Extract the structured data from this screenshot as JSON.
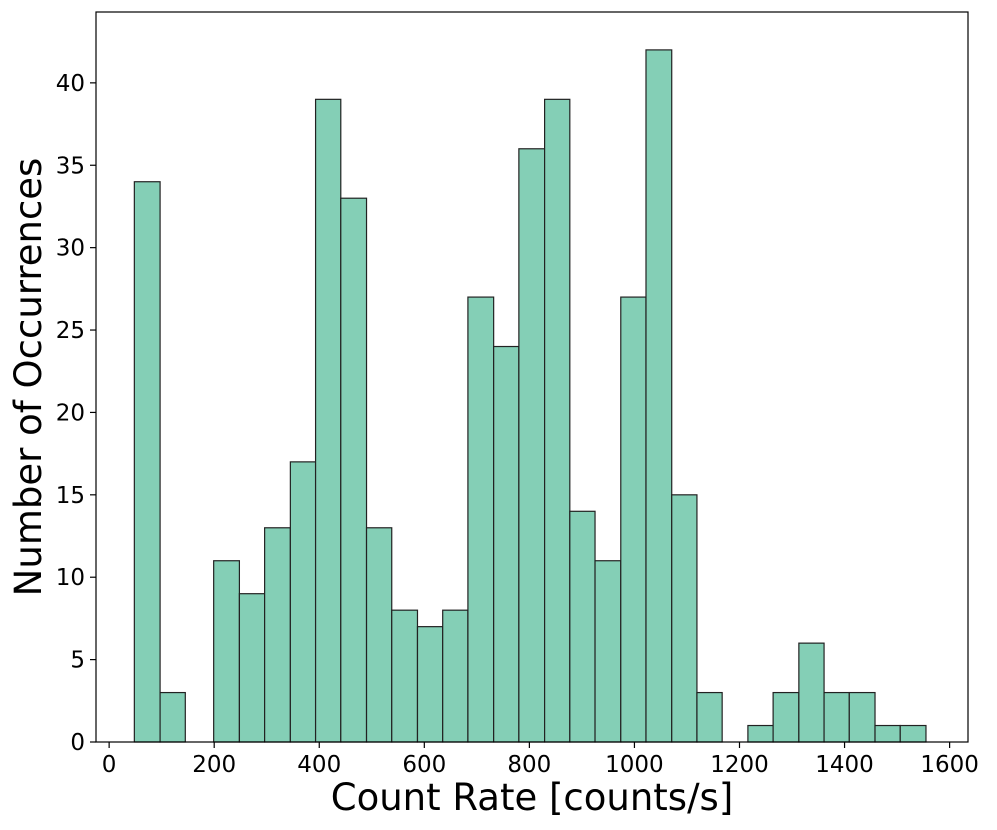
{
  "chart_data": {
    "type": "bar",
    "title": "",
    "xlabel": "Count Rate [counts/s]",
    "ylabel": "Number of Occurrences",
    "xlim": [
      -25,
      1635
    ],
    "ylim": [
      0,
      44.3
    ],
    "xticks": [
      0,
      200,
      400,
      600,
      800,
      1000,
      1200,
      1400,
      1600
    ],
    "yticks": [
      0,
      5,
      10,
      15,
      20,
      25,
      30,
      35,
      40
    ],
    "grid": false,
    "bar_color": "#84cfb6",
    "edge_color": "#222222",
    "bins": [
      {
        "x0": 48,
        "x1": 97,
        "value": 34
      },
      {
        "x0": 97,
        "x1": 145,
        "value": 3
      },
      {
        "x0": 199,
        "x1": 248,
        "value": 11
      },
      {
        "x0": 248,
        "x1": 296,
        "value": 9
      },
      {
        "x0": 296,
        "x1": 345,
        "value": 13
      },
      {
        "x0": 345,
        "x1": 393,
        "value": 17
      },
      {
        "x0": 393,
        "x1": 441,
        "value": 39
      },
      {
        "x0": 441,
        "x1": 490,
        "value": 33
      },
      {
        "x0": 490,
        "x1": 538,
        "value": 13
      },
      {
        "x0": 538,
        "x1": 587,
        "value": 8
      },
      {
        "x0": 587,
        "x1": 635,
        "value": 7
      },
      {
        "x0": 635,
        "x1": 683,
        "value": 8
      },
      {
        "x0": 683,
        "x1": 732,
        "value": 27
      },
      {
        "x0": 732,
        "x1": 780,
        "value": 24
      },
      {
        "x0": 780,
        "x1": 829,
        "value": 36
      },
      {
        "x0": 829,
        "x1": 877,
        "value": 39
      },
      {
        "x0": 877,
        "x1": 925,
        "value": 14
      },
      {
        "x0": 925,
        "x1": 974,
        "value": 11
      },
      {
        "x0": 974,
        "x1": 1022,
        "value": 27
      },
      {
        "x0": 1022,
        "x1": 1071,
        "value": 42
      },
      {
        "x0": 1071,
        "x1": 1119,
        "value": 15
      },
      {
        "x0": 1119,
        "x1": 1167,
        "value": 3
      },
      {
        "x0": 1216,
        "x1": 1264,
        "value": 1
      },
      {
        "x0": 1264,
        "x1": 1313,
        "value": 3
      },
      {
        "x0": 1313,
        "x1": 1361,
        "value": 6
      },
      {
        "x0": 1361,
        "x1": 1409,
        "value": 3
      },
      {
        "x0": 1409,
        "x1": 1458,
        "value": 3
      },
      {
        "x0": 1458,
        "x1": 1506,
        "value": 1
      },
      {
        "x0": 1506,
        "x1": 1555,
        "value": 1
      }
    ]
  }
}
